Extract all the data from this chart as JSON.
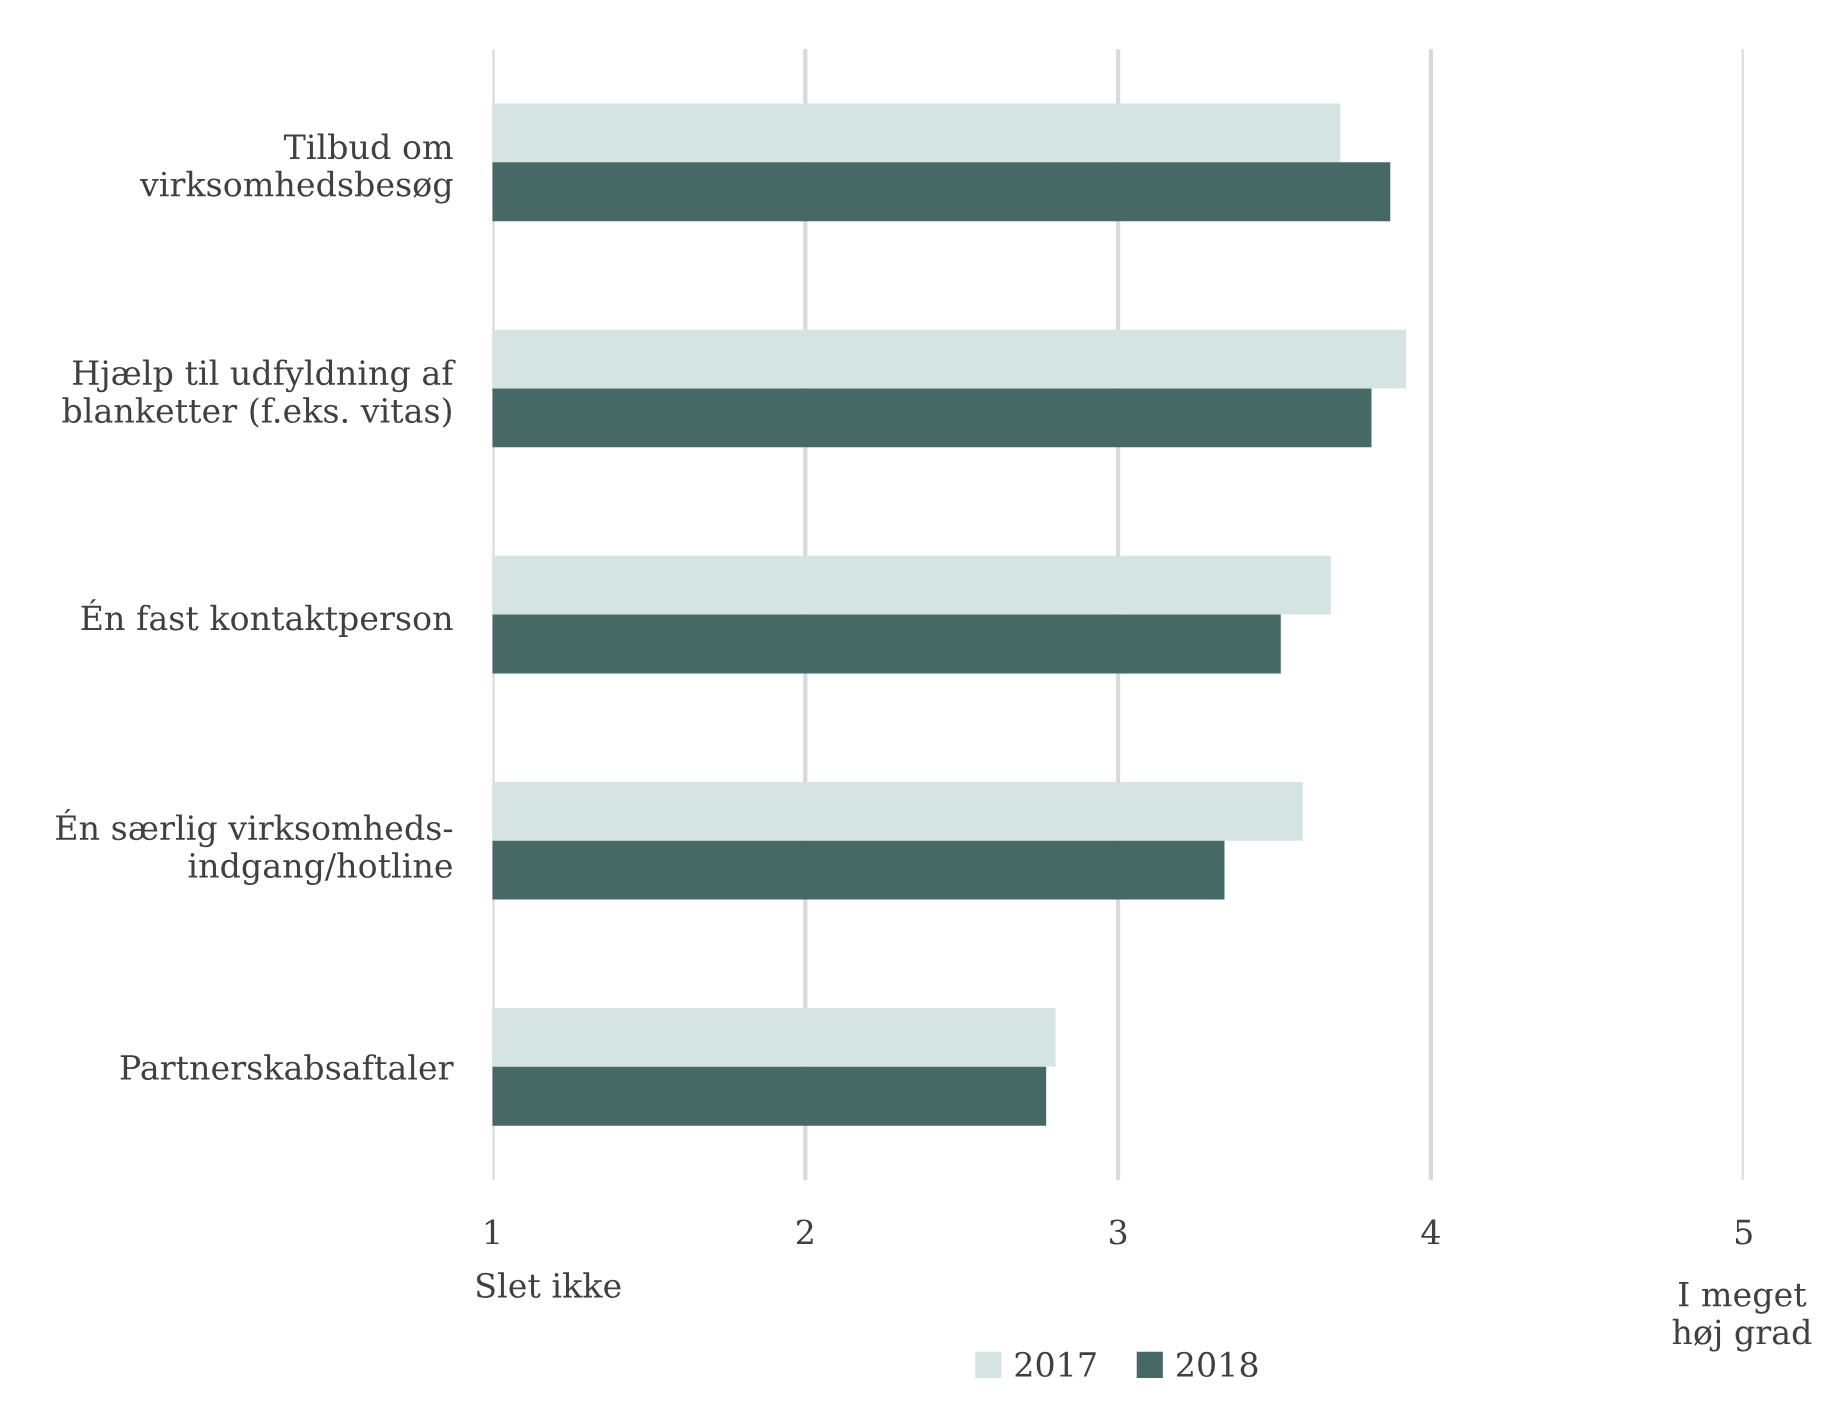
{
  "chart_data": {
    "type": "bar",
    "orientation": "horizontal",
    "categories": [
      "Tilbud om\nvirksomhedsbesøg",
      "Hjælp til udfyldning af\nblanketter (f.eks. vitas)",
      "Én fast kontaktperson",
      "Én særlig virksomheds-\nindgang/hotline",
      "Partnerskabsaftaler"
    ],
    "series": [
      {
        "name": "2017",
        "color": "#d5e3e2",
        "values": [
          3.71,
          3.92,
          3.68,
          3.59,
          2.8
        ]
      },
      {
        "name": "2018",
        "color": "#466966",
        "values": [
          3.87,
          3.81,
          3.52,
          3.34,
          2.77
        ]
      }
    ],
    "xlim": [
      1,
      5
    ],
    "xticks": [
      1,
      2,
      3,
      4,
      5
    ],
    "grid": "x",
    "legend": "bottom",
    "annotations": [
      "Slet ikke",
      "I meget\nhøj grad"
    ]
  }
}
